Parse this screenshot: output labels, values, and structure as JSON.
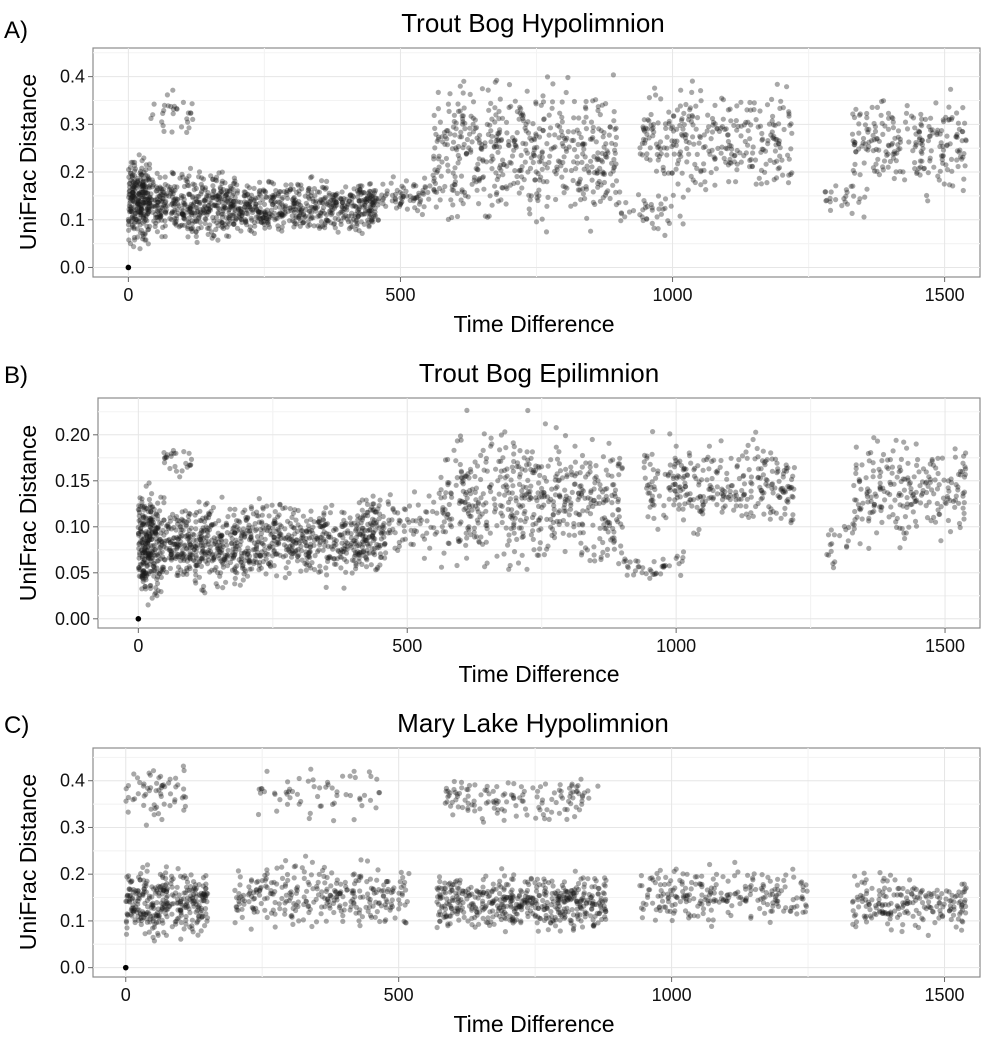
{
  "chart_data": [
    {
      "type": "scatter",
      "panel_label": "A)",
      "title": "Trout Bog Hypolimnion",
      "xlabel": "Time Difference",
      "ylabel": "UniFrac Distance",
      "xlim": [
        -65,
        1565
      ],
      "ylim": [
        -0.02,
        0.46
      ],
      "xticks": [
        0,
        500,
        1000,
        1500
      ],
      "xtick_labels": [
        "0",
        "500",
        "1000",
        "1500"
      ],
      "yticks": [
        0.0,
        0.1,
        0.2,
        0.3,
        0.4
      ],
      "ytick_labels": [
        "0.0",
        "0.1",
        "0.2",
        "0.3",
        "0.4"
      ],
      "grid": true,
      "marker_color": "#1a1a1a",
      "clusters": [
        {
          "x": [
            0,
            40
          ],
          "y": [
            0.02,
            0.26
          ],
          "n": 260
        },
        {
          "x": [
            40,
            200
          ],
          "y": [
            0.04,
            0.22
          ],
          "n": 420
        },
        {
          "x": [
            200,
            460
          ],
          "y": [
            0.05,
            0.2
          ],
          "n": 520
        },
        {
          "x": [
            40,
            120
          ],
          "y": [
            0.25,
            0.39
          ],
          "n": 30
        },
        {
          "x": [
            420,
            560
          ],
          "y": [
            0.1,
            0.2
          ],
          "n": 90
        },
        {
          "x": [
            560,
            900
          ],
          "y": [
            0.05,
            0.44
          ],
          "n": 520
        },
        {
          "x": [
            900,
            1020
          ],
          "y": [
            0.05,
            0.17
          ],
          "n": 40
        },
        {
          "x": [
            940,
            1220
          ],
          "y": [
            0.12,
            0.41
          ],
          "n": 300
        },
        {
          "x": [
            1280,
            1360
          ],
          "y": [
            0.08,
            0.2
          ],
          "n": 25
        },
        {
          "x": [
            1330,
            1540
          ],
          "y": [
            0.12,
            0.4
          ],
          "n": 220
        }
      ]
    },
    {
      "type": "scatter",
      "panel_label": "B)",
      "title": "Trout Bog Epilimnion",
      "xlabel": "Time Difference",
      "ylabel": "UniFrac Distance",
      "xlim": [
        -75,
        1565
      ],
      "ylim": [
        -0.01,
        0.24
      ],
      "xticks": [
        0,
        500,
        1000,
        1500
      ],
      "xtick_labels": [
        "0",
        "500",
        "1000",
        "1500"
      ],
      "yticks": [
        0.0,
        0.05,
        0.1,
        0.15,
        0.2
      ],
      "ytick_labels": [
        "0.00",
        "0.05",
        "0.10",
        "0.15",
        "0.20"
      ],
      "grid": true,
      "marker_color": "#1a1a1a",
      "clusters": [
        {
          "x": [
            0,
            40
          ],
          "y": [
            0.0,
            0.16
          ],
          "n": 260
        },
        {
          "x": [
            40,
            200
          ],
          "y": [
            0.02,
            0.14
          ],
          "n": 420
        },
        {
          "x": [
            200,
            460
          ],
          "y": [
            0.03,
            0.14
          ],
          "n": 520
        },
        {
          "x": [
            40,
            100
          ],
          "y": [
            0.15,
            0.2
          ],
          "n": 25
        },
        {
          "x": [
            420,
            560
          ],
          "y": [
            0.05,
            0.16
          ],
          "n": 80
        },
        {
          "x": [
            560,
            900
          ],
          "y": [
            0.03,
            0.23
          ],
          "n": 520
        },
        {
          "x": [
            900,
            1020
          ],
          "y": [
            0.04,
            0.08
          ],
          "n": 40
        },
        {
          "x": [
            940,
            1220
          ],
          "y": [
            0.08,
            0.21
          ],
          "n": 300
        },
        {
          "x": [
            1280,
            1360
          ],
          "y": [
            0.04,
            0.12
          ],
          "n": 25
        },
        {
          "x": [
            1330,
            1540
          ],
          "y": [
            0.07,
            0.21
          ],
          "n": 220
        }
      ]
    },
    {
      "type": "scatter",
      "panel_label": "C)",
      "title": "Mary Lake Hypolimnion",
      "xlabel": "Time Difference",
      "ylabel": "UniFrac Distance",
      "xlim": [
        -60,
        1565
      ],
      "ylim": [
        -0.02,
        0.47
      ],
      "xticks": [
        0,
        500,
        1000,
        1500
      ],
      "xtick_labels": [
        "0",
        "500",
        "1000",
        "1500"
      ],
      "yticks": [
        0.0,
        0.1,
        0.2,
        0.3,
        0.4
      ],
      "ytick_labels": [
        "0.0",
        "0.1",
        "0.2",
        "0.3",
        "0.4"
      ],
      "grid": true,
      "marker_color": "#1a1a1a",
      "clusters": [
        {
          "x": [
            0,
            150
          ],
          "y": [
            0.04,
            0.24
          ],
          "n": 330
        },
        {
          "x": [
            0,
            110
          ],
          "y": [
            0.3,
            0.45
          ],
          "n": 60
        },
        {
          "x": [
            200,
            520
          ],
          "y": [
            0.06,
            0.25
          ],
          "n": 300
        },
        {
          "x": [
            220,
            470
          ],
          "y": [
            0.3,
            0.45
          ],
          "n": 60
        },
        {
          "x": [
            570,
            880
          ],
          "y": [
            0.06,
            0.22
          ],
          "n": 500
        },
        {
          "x": [
            580,
            870
          ],
          "y": [
            0.3,
            0.42
          ],
          "n": 130
        },
        {
          "x": [
            940,
            1250
          ],
          "y": [
            0.07,
            0.24
          ],
          "n": 230
        },
        {
          "x": [
            1330,
            1540
          ],
          "y": [
            0.06,
            0.22
          ],
          "n": 200
        }
      ]
    }
  ]
}
